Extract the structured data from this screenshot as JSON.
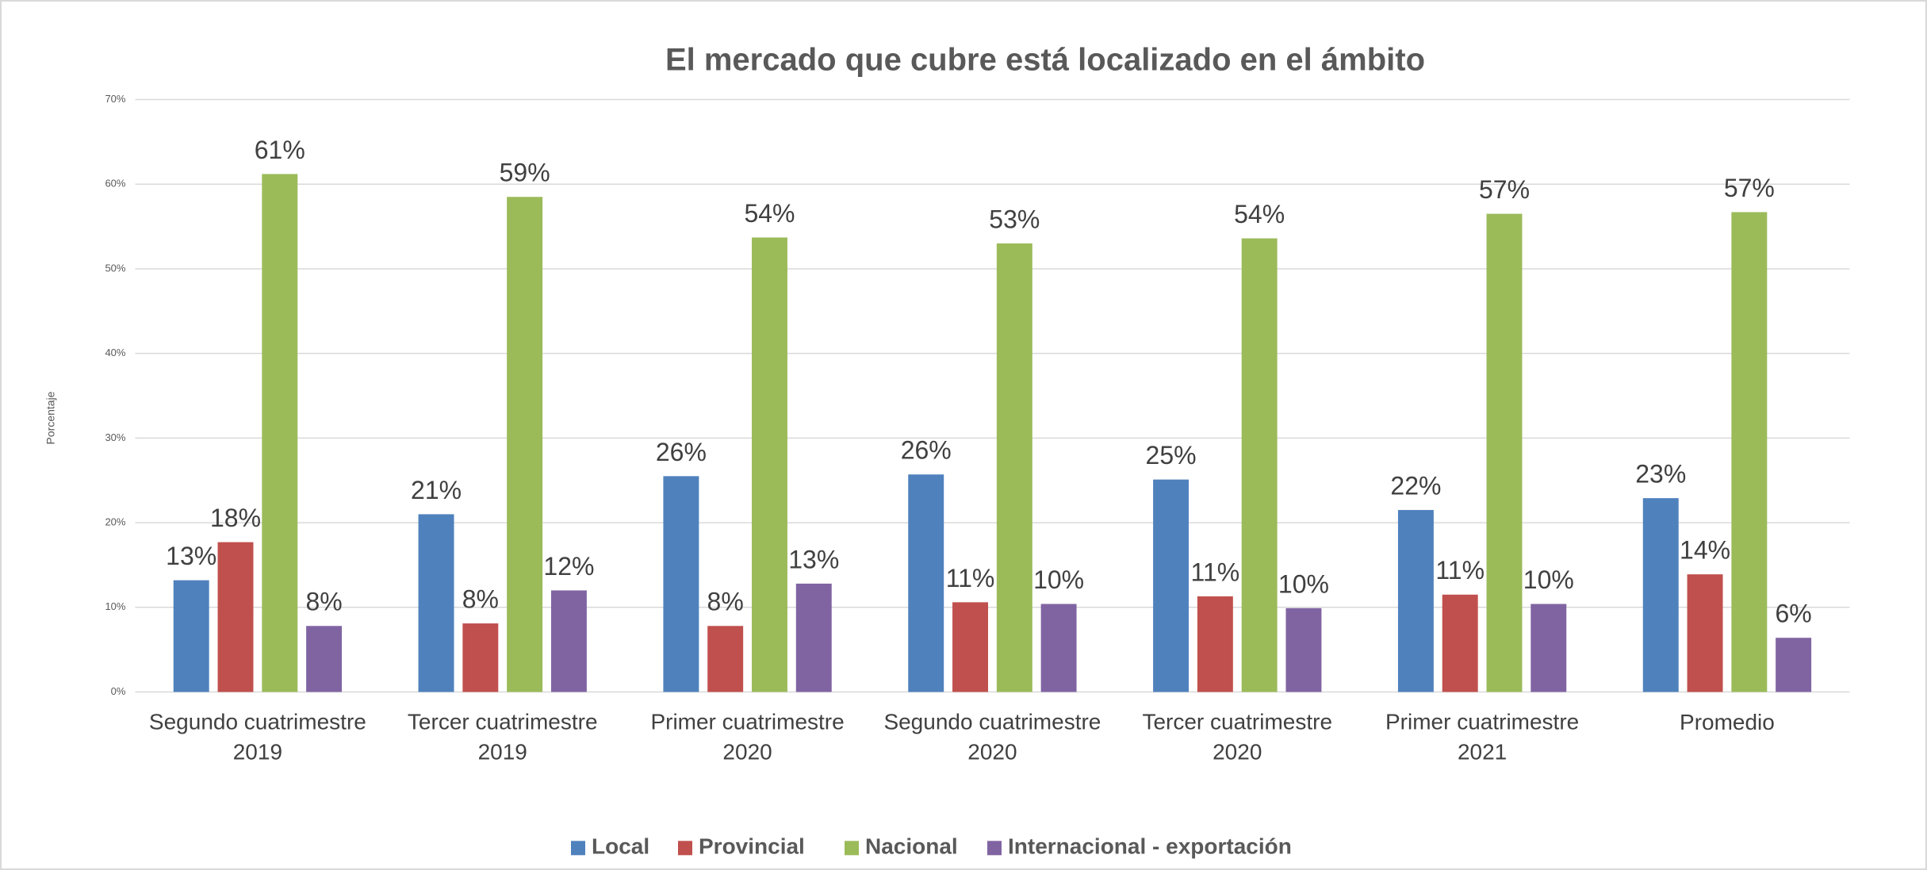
{
  "chart_data": {
    "type": "bar",
    "title": "El mercado que cubre está localizado en el ámbito",
    "y_label": "Porcentaje",
    "categories": [
      "Segundo cuatrimestre 2019",
      "Tercer cuatrimestre 2019",
      "Primer cuatrimestre 2020",
      "Segundo cuatrimestre 2020",
      "Tercer cuatrimestre 2020",
      "Primer cuatrimestre 2021",
      "Promedio"
    ],
    "series": [
      {
        "name": "Local",
        "color": "#4f81bd",
        "values": [
          13.2,
          21.0,
          25.5,
          25.7,
          25.1,
          21.5,
          22.9
        ],
        "value_labels": [
          "13%",
          "21%",
          "26%",
          "26%",
          "25%",
          "22%",
          "23%"
        ]
      },
      {
        "name": "Provincial",
        "color": "#c0504d",
        "values": [
          17.7,
          8.1,
          7.8,
          10.6,
          11.3,
          11.5,
          13.9
        ],
        "value_labels": [
          "18%",
          "8%",
          "8%",
          "11%",
          "11%",
          "11%",
          "14%"
        ]
      },
      {
        "name": "Nacional",
        "color": "#9bbb59",
        "values": [
          61.2,
          58.5,
          53.7,
          53.0,
          53.6,
          56.5,
          56.7
        ],
        "value_labels": [
          "61%",
          "59%",
          "54%",
          "53%",
          "54%",
          "57%",
          "57%"
        ]
      },
      {
        "name": "Internacional - exportación",
        "color": "#8064a2",
        "values": [
          7.8,
          12.0,
          12.8,
          10.4,
          9.9,
          10.4,
          6.4
        ],
        "value_labels": [
          "8%",
          "12%",
          "13%",
          "10%",
          "10%",
          "10%",
          "6%"
        ]
      }
    ],
    "ylim": [
      0,
      70
    ],
    "yticks": [
      {
        "value": 0,
        "label": "0%"
      },
      {
        "value": 10,
        "label": "10%"
      },
      {
        "value": 20,
        "label": "20%"
      },
      {
        "value": 30,
        "label": "30%"
      },
      {
        "value": 40,
        "label": "40%"
      },
      {
        "value": 50,
        "label": "50%"
      },
      {
        "value": 60,
        "label": "60%"
      },
      {
        "value": 70,
        "label": "70%"
      }
    ],
    "grid": true,
    "legend": "bottom"
  }
}
